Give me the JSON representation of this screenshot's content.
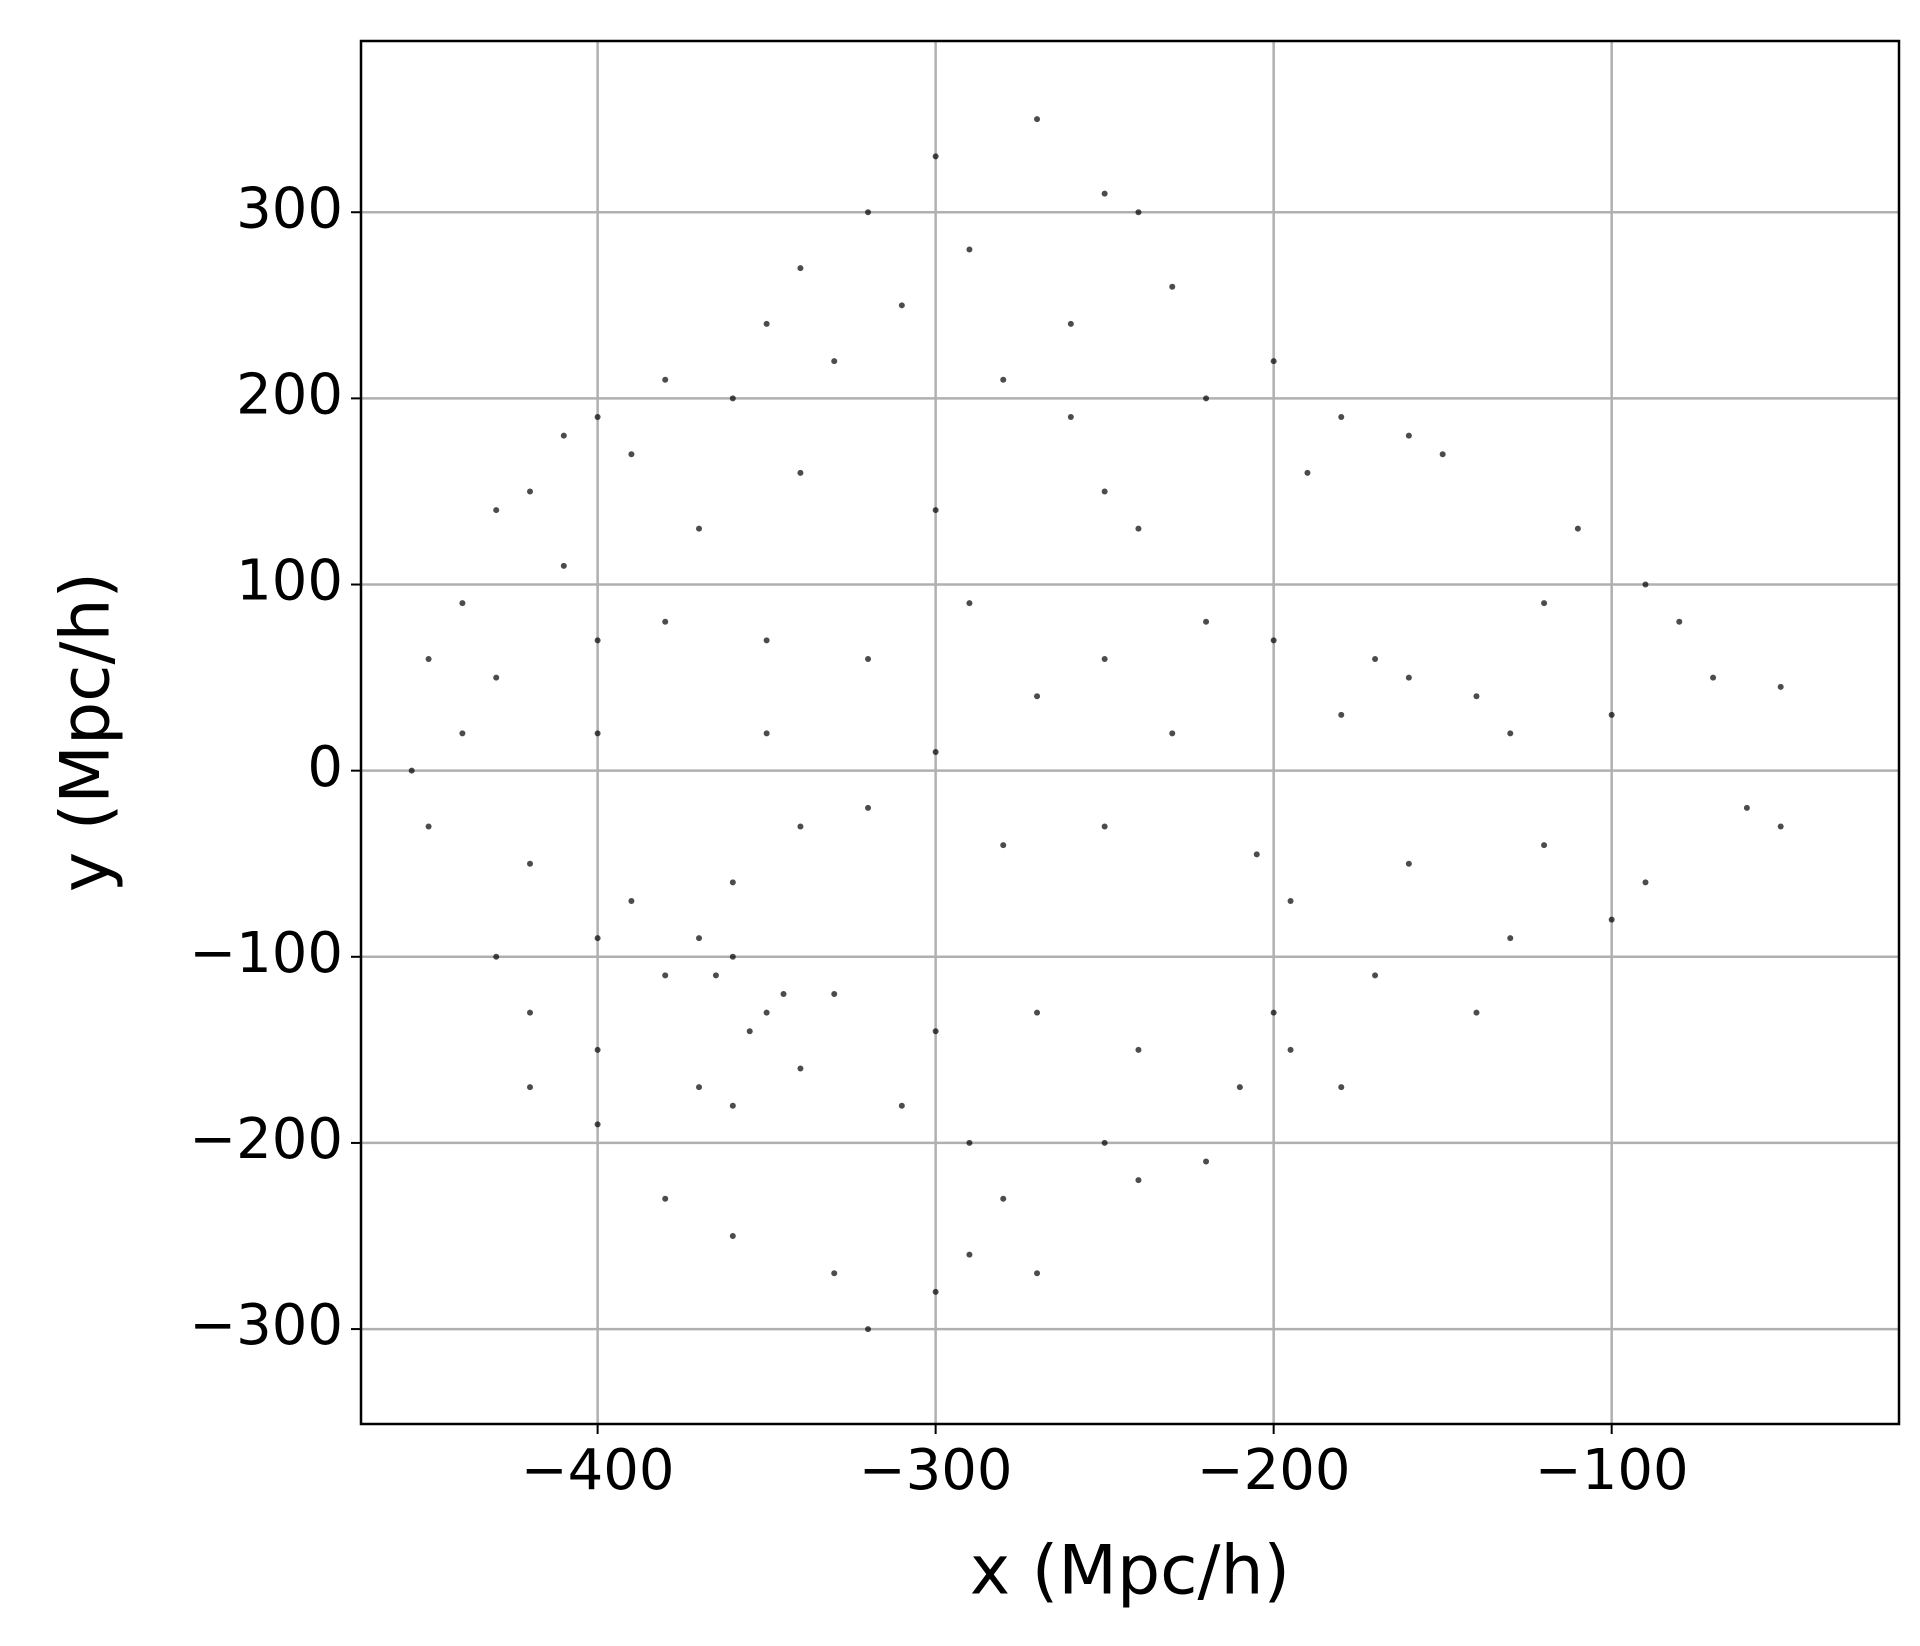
{
  "chart_data": {
    "type": "scatter",
    "x_label": "x (Mpc/h)",
    "y_label": "y (Mpc/h)",
    "xlim": [
      -470,
      -15
    ],
    "ylim": [
      -351,
      392
    ],
    "xticks": [
      {
        "value": -400,
        "label": "−400"
      },
      {
        "value": -300,
        "label": "−300"
      },
      {
        "value": -200,
        "label": "−200"
      },
      {
        "value": -100,
        "label": "−100"
      }
    ],
    "yticks": [
      {
        "value": -300,
        "label": "−300"
      },
      {
        "value": -200,
        "label": "−200"
      },
      {
        "value": -100,
        "label": "−100"
      },
      0,
      100,
      200,
      300
    ],
    "grid": true,
    "color": "#000000",
    "x": [
      -270,
      -300,
      -250,
      -240,
      -320,
      -340,
      -290,
      -230,
      -260,
      -310,
      -350,
      -380,
      -400,
      -410,
      -420,
      -430,
      -390,
      -360,
      -330,
      -280,
      -260,
      -220,
      -200,
      -180,
      -160,
      -150,
      -190,
      -240,
      -250,
      -300,
      -340,
      -370,
      -410,
      -440,
      -450,
      -430,
      -400,
      -380,
      -350,
      -320,
      -290,
      -270,
      -250,
      -220,
      -200,
      -170,
      -160,
      -140,
      -120,
      -110,
      -90,
      -80,
      -70,
      -50,
      -100,
      -130,
      -180,
      -230,
      -300,
      -350,
      -400,
      -440,
      -455,
      -450,
      -420,
      -390,
      -360,
      -340,
      -320,
      -280,
      -250,
      -205,
      -195,
      -160,
      -120,
      -90,
      -60,
      -50,
      -100,
      -130,
      -140,
      -170,
      -200,
      -195,
      -180,
      -210,
      -240,
      -270,
      -300,
      -330,
      -360,
      -370,
      -380,
      -400,
      -430,
      -420,
      -400,
      -370,
      -360,
      -340,
      -310,
      -290,
      -280,
      -290,
      -270,
      -300,
      -320,
      -330,
      -360,
      -380,
      -400,
      -420,
      -240,
      -220,
      -250,
      -350,
      -355,
      -345,
      -365
    ],
    "y": [
      350,
      330,
      310,
      300,
      300,
      270,
      280,
      260,
      240,
      250,
      240,
      210,
      190,
      180,
      150,
      140,
      170,
      200,
      220,
      210,
      190,
      200,
      220,
      190,
      180,
      170,
      160,
      130,
      150,
      140,
      160,
      130,
      110,
      90,
      60,
      50,
      70,
      80,
      70,
      60,
      90,
      40,
      60,
      80,
      70,
      60,
      50,
      40,
      90,
      130,
      100,
      80,
      50,
      45,
      30,
      20,
      30,
      20,
      10,
      20,
      20,
      20,
      0,
      -30,
      -50,
      -70,
      -60,
      -30,
      -20,
      -40,
      -30,
      -45,
      -70,
      -50,
      -40,
      -60,
      -20,
      -30,
      -80,
      -90,
      -130,
      -110,
      -130,
      -150,
      -170,
      -170,
      -150,
      -130,
      -140,
      -120,
      -100,
      -90,
      -110,
      -90,
      -100,
      -130,
      -150,
      -170,
      -180,
      -160,
      -180,
      -200,
      -230,
      -260,
      -270,
      -280,
      -300,
      -270,
      -250,
      -230,
      -190,
      -170,
      -220,
      -210,
      -200,
      -130,
      -140,
      -120,
      -110
    ]
  }
}
